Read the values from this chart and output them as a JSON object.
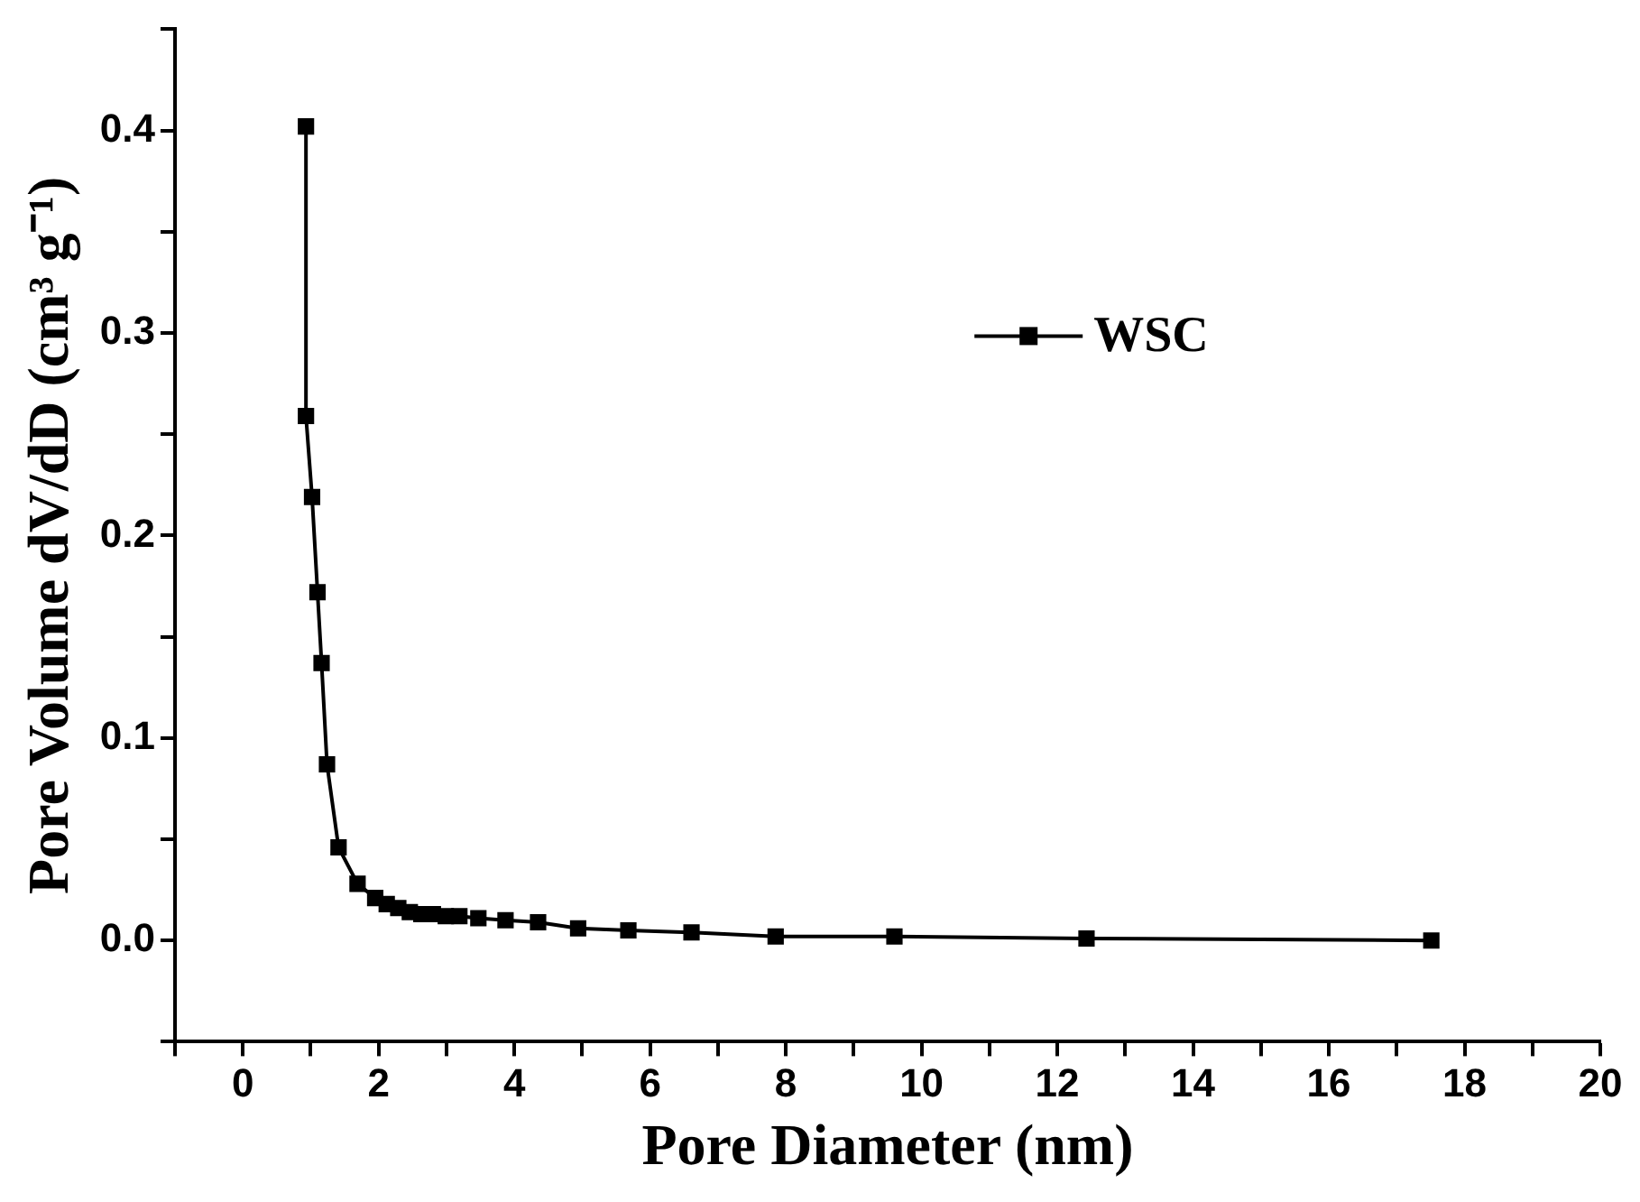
{
  "chart_data": {
    "type": "line",
    "xlabel": "Pore Diameter (nm)",
    "ylabel": "Pore Volume dV/dD (cm³ g⁻¹)",
    "xlim": [
      -1,
      20
    ],
    "ylim": [
      -0.05,
      0.45
    ],
    "xticks": [
      {
        "value": -1,
        "label": null
      },
      0,
      {
        "value": 1,
        "label": null
      },
      2,
      {
        "value": 3,
        "label": null
      },
      4,
      {
        "value": 5,
        "label": null
      },
      6,
      {
        "value": 7,
        "label": null
      },
      8,
      {
        "value": 9,
        "label": null
      },
      10,
      {
        "value": 11,
        "label": null
      },
      12,
      {
        "value": 13,
        "label": null
      },
      14,
      {
        "value": 15,
        "label": null
      },
      16,
      {
        "value": 17,
        "label": null
      },
      18,
      {
        "value": 19,
        "label": null
      },
      20
    ],
    "yticks": [
      {
        "value": -0.05,
        "label": null
      },
      {
        "value": 0,
        "label": "0.0"
      },
      {
        "value": 0.05,
        "label": null
      },
      0.1,
      {
        "value": 0.15,
        "label": null
      },
      0.2,
      {
        "value": 0.25,
        "label": null
      },
      0.3,
      {
        "value": 0.35,
        "label": null
      },
      0.4,
      {
        "value": 0.45,
        "label": null
      }
    ],
    "grid": false,
    "legend": "top right",
    "marker": "square",
    "line_style": "solid",
    "series": [
      {
        "name": "WSC",
        "color": "#000000",
        "x": [
          0.93,
          0.93,
          1.02,
          1.1,
          1.16,
          1.24,
          1.41,
          1.69,
          1.95,
          2.12,
          2.29,
          2.46,
          2.63,
          2.8,
          2.99,
          3.19,
          3.47,
          3.87,
          4.35,
          4.94,
          5.68,
          6.61,
          7.85,
          9.6,
          12.43,
          17.51
        ],
        "values": [
          0.402,
          0.259,
          0.219,
          0.172,
          0.137,
          0.087,
          0.046,
          0.028,
          0.021,
          0.018,
          0.016,
          0.014,
          0.013,
          0.013,
          0.012,
          0.012,
          0.011,
          0.01,
          0.009,
          0.006,
          0.005,
          0.004,
          0.002,
          0.002,
          0.001,
          0.0
        ]
      }
    ]
  }
}
